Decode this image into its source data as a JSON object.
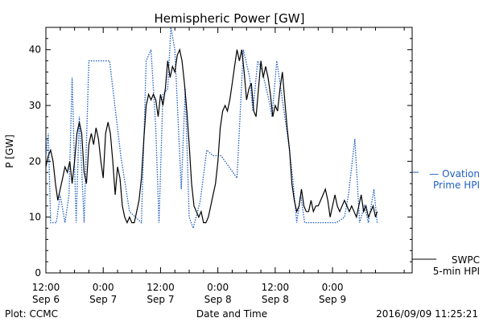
{
  "chart_data": {
    "type": "line",
    "title": "Hemispheric Power [GW]",
    "ylabel": "P [GW]",
    "xlabel": "Date and Time",
    "ylim": [
      0,
      44
    ],
    "xlim": [
      0,
      4600
    ],
    "y_ticks": [
      0,
      10,
      20,
      30,
      40
    ],
    "x_ticks": [
      {
        "minute": 0,
        "time": "12:00",
        "date": "Sep 6"
      },
      {
        "minute": 720,
        "time": "0:00",
        "date": "Sep 7"
      },
      {
        "minute": 1440,
        "time": "12:00",
        "date": "Sep 7"
      },
      {
        "minute": 2160,
        "time": "0:00",
        "date": "Sep 8"
      },
      {
        "minute": 2880,
        "time": "12:00",
        "date": "Sep 8"
      },
      {
        "minute": 3600,
        "time": "0:00",
        "date": "Sep 9"
      }
    ],
    "series": [
      {
        "name": "Ovation Prime HPI",
        "color": "#1f5fbf",
        "style": "dotted",
        "points": [
          [
            0,
            21
          ],
          [
            30,
            25
          ],
          [
            60,
            9
          ],
          [
            130,
            9
          ],
          [
            180,
            14
          ],
          [
            240,
            9
          ],
          [
            290,
            14
          ],
          [
            330,
            35
          ],
          [
            380,
            9
          ],
          [
            420,
            28
          ],
          [
            480,
            9
          ],
          [
            540,
            38
          ],
          [
            800,
            38
          ],
          [
            900,
            26
          ],
          [
            940,
            21
          ],
          [
            1050,
            11
          ],
          [
            1200,
            9
          ],
          [
            1260,
            38
          ],
          [
            1320,
            40
          ],
          [
            1380,
            26
          ],
          [
            1420,
            9
          ],
          [
            1470,
            32
          ],
          [
            1530,
            33
          ],
          [
            1570,
            44
          ],
          [
            1620,
            40
          ],
          [
            1700,
            15
          ],
          [
            1750,
            33
          ],
          [
            1800,
            10
          ],
          [
            1850,
            8
          ],
          [
            1940,
            13
          ],
          [
            2020,
            22
          ],
          [
            2100,
            21
          ],
          [
            2200,
            21
          ],
          [
            2400,
            17
          ],
          [
            2480,
            40
          ],
          [
            2560,
            35
          ],
          [
            2600,
            29
          ],
          [
            2660,
            38
          ],
          [
            2720,
            36
          ],
          [
            2800,
            31
          ],
          [
            2840,
            28
          ],
          [
            2900,
            38
          ],
          [
            2980,
            30
          ],
          [
            3050,
            23
          ],
          [
            3100,
            17
          ],
          [
            3150,
            9
          ],
          [
            3200,
            14
          ],
          [
            3250,
            9
          ],
          [
            3350,
            9
          ],
          [
            3550,
            9
          ],
          [
            3650,
            9
          ],
          [
            3750,
            10
          ],
          [
            3800,
            14
          ],
          [
            3880,
            24
          ],
          [
            3940,
            9
          ],
          [
            4000,
            12
          ],
          [
            4050,
            9
          ],
          [
            4120,
            15
          ],
          [
            4160,
            9
          ]
        ]
      },
      {
        "name": "SWPC 5-min HPI",
        "color": "#000000",
        "style": "solid",
        "points": [
          [
            0,
            19
          ],
          [
            30,
            21
          ],
          [
            60,
            22
          ],
          [
            90,
            20
          ],
          [
            120,
            16
          ],
          [
            150,
            13
          ],
          [
            180,
            15
          ],
          [
            210,
            17
          ],
          [
            240,
            19
          ],
          [
            270,
            18
          ],
          [
            300,
            20
          ],
          [
            330,
            16
          ],
          [
            360,
            20
          ],
          [
            390,
            25
          ],
          [
            420,
            27
          ],
          [
            450,
            25
          ],
          [
            480,
            18
          ],
          [
            510,
            16
          ],
          [
            540,
            23
          ],
          [
            570,
            25
          ],
          [
            600,
            23
          ],
          [
            630,
            26
          ],
          [
            660,
            24
          ],
          [
            690,
            20
          ],
          [
            720,
            17
          ],
          [
            750,
            25
          ],
          [
            780,
            27
          ],
          [
            810,
            25
          ],
          [
            840,
            20
          ],
          [
            870,
            14
          ],
          [
            900,
            19
          ],
          [
            930,
            17
          ],
          [
            960,
            12
          ],
          [
            990,
            10
          ],
          [
            1020,
            9
          ],
          [
            1050,
            10
          ],
          [
            1080,
            9
          ],
          [
            1110,
            9
          ],
          [
            1140,
            11
          ],
          [
            1170,
            13
          ],
          [
            1200,
            17
          ],
          [
            1230,
            24
          ],
          [
            1260,
            30
          ],
          [
            1290,
            32
          ],
          [
            1320,
            31
          ],
          [
            1350,
            32
          ],
          [
            1380,
            31
          ],
          [
            1410,
            28
          ],
          [
            1440,
            32
          ],
          [
            1470,
            30
          ],
          [
            1500,
            33
          ],
          [
            1530,
            38
          ],
          [
            1560,
            35
          ],
          [
            1590,
            37
          ],
          [
            1620,
            36
          ],
          [
            1650,
            39
          ],
          [
            1680,
            40
          ],
          [
            1710,
            38
          ],
          [
            1740,
            34
          ],
          [
            1770,
            29
          ],
          [
            1800,
            23
          ],
          [
            1830,
            16
          ],
          [
            1860,
            12
          ],
          [
            1890,
            11
          ],
          [
            1920,
            10
          ],
          [
            1950,
            11
          ],
          [
            1980,
            9
          ],
          [
            2010,
            9
          ],
          [
            2040,
            10
          ],
          [
            2070,
            12
          ],
          [
            2100,
            14
          ],
          [
            2130,
            16
          ],
          [
            2160,
            20
          ],
          [
            2190,
            26
          ],
          [
            2220,
            29
          ],
          [
            2250,
            30
          ],
          [
            2280,
            29
          ],
          [
            2310,
            31
          ],
          [
            2340,
            34
          ],
          [
            2370,
            37
          ],
          [
            2400,
            40
          ],
          [
            2430,
            38
          ],
          [
            2460,
            40
          ],
          [
            2490,
            36
          ],
          [
            2520,
            31
          ],
          [
            2550,
            33
          ],
          [
            2580,
            34
          ],
          [
            2610,
            29
          ],
          [
            2640,
            28
          ],
          [
            2670,
            33
          ],
          [
            2700,
            38
          ],
          [
            2730,
            35
          ],
          [
            2760,
            37
          ],
          [
            2790,
            35
          ],
          [
            2820,
            32
          ],
          [
            2850,
            28
          ],
          [
            2880,
            30
          ],
          [
            2910,
            29
          ],
          [
            2940,
            33
          ],
          [
            2970,
            36
          ],
          [
            3000,
            31
          ],
          [
            3030,
            26
          ],
          [
            3060,
            22
          ],
          [
            3090,
            16
          ],
          [
            3120,
            13
          ],
          [
            3150,
            11
          ],
          [
            3180,
            12
          ],
          [
            3210,
            15
          ],
          [
            3240,
            12
          ],
          [
            3270,
            11
          ],
          [
            3300,
            11
          ],
          [
            3330,
            13
          ],
          [
            3360,
            11
          ],
          [
            3390,
            12
          ],
          [
            3420,
            12
          ],
          [
            3450,
            13
          ],
          [
            3480,
            14
          ],
          [
            3510,
            15
          ],
          [
            3540,
            13
          ],
          [
            3570,
            10
          ],
          [
            3600,
            12
          ],
          [
            3630,
            14
          ],
          [
            3660,
            12
          ],
          [
            3690,
            11
          ],
          [
            3720,
            12
          ],
          [
            3750,
            13
          ],
          [
            3780,
            12
          ],
          [
            3810,
            11
          ],
          [
            3840,
            12
          ],
          [
            3870,
            11
          ],
          [
            3900,
            10
          ],
          [
            3930,
            12
          ],
          [
            3960,
            14
          ],
          [
            3990,
            11
          ],
          [
            4020,
            12
          ],
          [
            4050,
            10
          ],
          [
            4080,
            11
          ],
          [
            4110,
            12
          ],
          [
            4140,
            10
          ],
          [
            4160,
            11
          ]
        ]
      }
    ]
  },
  "legend": {
    "ovation_line1": "— Ovation",
    "ovation_line2": "Prime HPI",
    "swpc_line1": "SWPC",
    "swpc_line2": "5-min HPI"
  },
  "footer": {
    "plot_credit": "Plot: CCMC",
    "timestamp": "2016/09/09 11:25:21"
  }
}
